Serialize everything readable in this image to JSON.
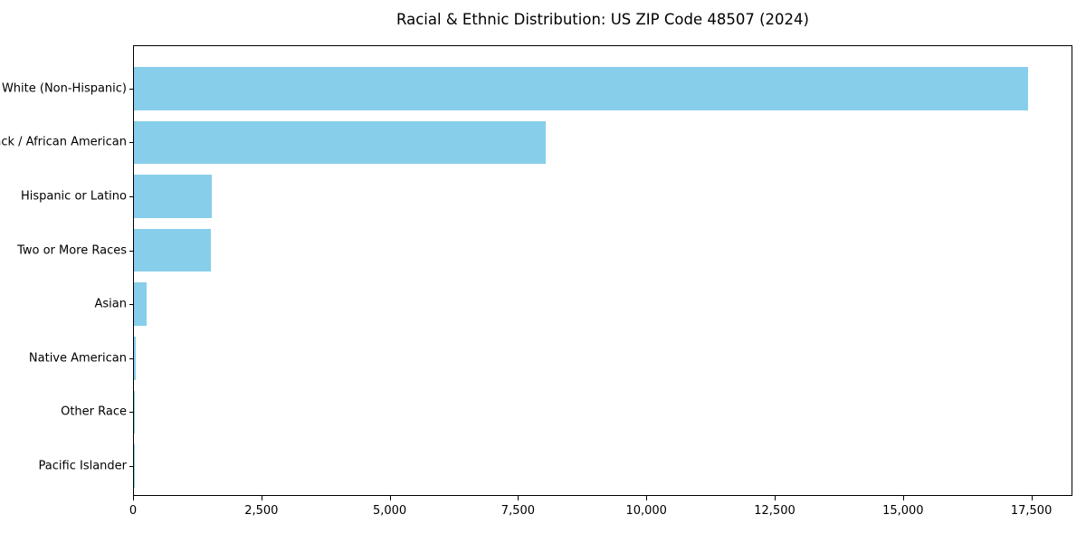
{
  "chart_data": {
    "type": "bar",
    "orientation": "horizontal",
    "title": "Racial & Ethnic Distribution: US ZIP Code 48507 (2024)",
    "categories": [
      "White (Non-Hispanic)",
      "Black / African American",
      "Hispanic or Latino",
      "Two or More Races",
      "Asian",
      "Native American",
      "Other Race",
      "Pacific Islander"
    ],
    "values": [
      17450,
      8030,
      1520,
      1500,
      240,
      40,
      20,
      10
    ],
    "xlabel": "",
    "ylabel": "",
    "xlim": [
      0,
      18300
    ],
    "xticks": [
      0,
      2500,
      5000,
      7500,
      10000,
      12500,
      15000,
      17500
    ],
    "xtick_labels": [
      "0",
      "2,500",
      "5,000",
      "7,500",
      "10,000",
      "12,500",
      "15,000",
      "17,500"
    ],
    "bar_color": "#87CEEB",
    "axis_color": "#000000",
    "background_color": "#ffffff",
    "grid": false,
    "legend": false
  }
}
